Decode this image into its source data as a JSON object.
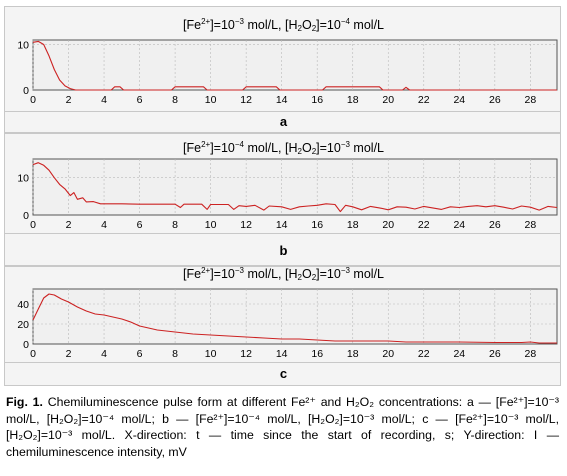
{
  "colors": {
    "line": "#cc2222",
    "plot_bg": "#f0f0f0",
    "frame": "#cccccc",
    "grid": "#b9b9b9"
  },
  "panels": [
    {
      "letter": "a",
      "title": {
        "fe_pre": "[Fe",
        "fe_sup": "2+",
        "fe_post": "]=10",
        "fe_exp": "−3",
        "fe_unit": " mol/L, ",
        "h_pre": "[H",
        "h_sub1": "2",
        "h_mid": "O",
        "h_sub2": "2",
        "h_post": "]=10",
        "h_exp": "−4",
        "h_unit": " mol/L"
      }
    },
    {
      "letter": "b",
      "title": {
        "fe_pre": "[Fe",
        "fe_sup": "2+",
        "fe_post": "]=10",
        "fe_exp": "−4",
        "fe_unit": " mol/L, ",
        "h_pre": "[H",
        "h_sub1": "2",
        "h_mid": "O",
        "h_sub2": "2",
        "h_post": "]=10",
        "h_exp": "−3",
        "h_unit": " mol/L"
      }
    },
    {
      "letter": "c",
      "title": {
        "fe_pre": "[Fe",
        "fe_sup": "2+",
        "fe_post": "]=10",
        "fe_exp": "−3",
        "fe_unit": " mol/L, ",
        "h_pre": "[H",
        "h_sub1": "2",
        "h_mid": "O",
        "h_sub2": "2",
        "h_post": "]=10",
        "h_exp": "−3",
        "h_unit": " mol/L"
      }
    }
  ],
  "caption": {
    "label": "Fig. 1.",
    "text": "Chemiluminescence pulse form at different Fe²⁺ and H₂O₂ concentrations: a — [Fe²⁺]=10⁻³ mol/L, [H₂O₂]=10⁻⁴ mol/L; b — [Fe²⁺]=10⁻⁴ mol/L, [H₂O₂]=10⁻³ mol/L; c — [Fe²⁺]=10⁻³ mol/L, [H₂O₂]=10⁻³ mol/L. X-direction: t — time since the start of recording, s; Y-direction: I — chemiluminescence intensity, mV"
  },
  "chart_data": [
    {
      "type": "line",
      "xlim": [
        0,
        29.5
      ],
      "ylim": [
        0,
        11
      ],
      "xticks": [
        0,
        2,
        4,
        6,
        8,
        10,
        12,
        14,
        16,
        18,
        20,
        22,
        24,
        26,
        28
      ],
      "yticks": [
        0,
        10
      ],
      "grid": true,
      "series": [
        {
          "points": [
            [
              0,
              10.5
            ],
            [
              0.3,
              10.7
            ],
            [
              0.6,
              10
            ],
            [
              0.9,
              7.5
            ],
            [
              1.2,
              4.5
            ],
            [
              1.5,
              2.2
            ],
            [
              1.8,
              0.9
            ],
            [
              2.1,
              0.3
            ],
            [
              2.4,
              0
            ],
            [
              4.4,
              0
            ],
            [
              4.6,
              0.7
            ],
            [
              4.9,
              0.7
            ],
            [
              5.1,
              0
            ],
            [
              7.8,
              0
            ],
            [
              8,
              0.7
            ],
            [
              9.6,
              0.7
            ],
            [
              9.8,
              0
            ],
            [
              11.8,
              0
            ],
            [
              12,
              0.7
            ],
            [
              13.7,
              0.7
            ],
            [
              13.9,
              0
            ],
            [
              16.3,
              0
            ],
            [
              16.5,
              0.7
            ],
            [
              19.5,
              0.7
            ],
            [
              19.7,
              0
            ],
            [
              20.8,
              0
            ],
            [
              21,
              0.6
            ],
            [
              21.2,
              0
            ],
            [
              29.5,
              0
            ]
          ]
        }
      ]
    },
    {
      "type": "line",
      "xlim": [
        0,
        29.5
      ],
      "ylim": [
        0,
        15
      ],
      "xticks": [
        0,
        2,
        4,
        6,
        8,
        10,
        12,
        14,
        16,
        18,
        20,
        22,
        24,
        26,
        28
      ],
      "yticks": [
        0,
        10
      ],
      "grid": true,
      "series": [
        {
          "points": [
            [
              0,
              13.5
            ],
            [
              0.3,
              14
            ],
            [
              0.6,
              13.3
            ],
            [
              0.9,
              12
            ],
            [
              1.2,
              10
            ],
            [
              1.5,
              8.2
            ],
            [
              1.8,
              7
            ],
            [
              2.1,
              5.2
            ],
            [
              2.3,
              6
            ],
            [
              2.5,
              4.2
            ],
            [
              2.8,
              4.6
            ],
            [
              3,
              3.5
            ],
            [
              3.4,
              3.6
            ],
            [
              3.8,
              3
            ],
            [
              5,
              3
            ],
            [
              6,
              2.9
            ],
            [
              7,
              2.9
            ],
            [
              8,
              2.9
            ],
            [
              8.3,
              2
            ],
            [
              8.5,
              2.9
            ],
            [
              9.5,
              2.9
            ],
            [
              9.8,
              1.5
            ],
            [
              10,
              2.8
            ],
            [
              11,
              2.8
            ],
            [
              11.3,
              1.5
            ],
            [
              11.6,
              2.5
            ],
            [
              12,
              2.3
            ],
            [
              12.5,
              2.6
            ],
            [
              13,
              1.3
            ],
            [
              13.3,
              2.4
            ],
            [
              14,
              2.2
            ],
            [
              14.5,
              1.5
            ],
            [
              15,
              2.2
            ],
            [
              15.5,
              2.4
            ],
            [
              16,
              2.6
            ],
            [
              16.5,
              3
            ],
            [
              17,
              2.8
            ],
            [
              17.3,
              0.9
            ],
            [
              17.6,
              2.6
            ],
            [
              18,
              2.2
            ],
            [
              18.5,
              1.4
            ],
            [
              19,
              2.3
            ],
            [
              19.5,
              1.9
            ],
            [
              20,
              1.4
            ],
            [
              20.5,
              2.2
            ],
            [
              21,
              2.1
            ],
            [
              21.5,
              1.6
            ],
            [
              22,
              2.3
            ],
            [
              22.5,
              1.9
            ],
            [
              23,
              1.5
            ],
            [
              23.5,
              2.2
            ],
            [
              24,
              2
            ],
            [
              24.5,
              2.3
            ],
            [
              25,
              2.5
            ],
            [
              25.5,
              2.2
            ],
            [
              26,
              2.5
            ],
            [
              26.5,
              2.1
            ],
            [
              27,
              1.6
            ],
            [
              27.5,
              2.4
            ],
            [
              28,
              2.1
            ],
            [
              28.5,
              1.3
            ],
            [
              29,
              2.3
            ],
            [
              29.5,
              2
            ]
          ]
        }
      ]
    },
    {
      "type": "line",
      "xlim": [
        0,
        29.5
      ],
      "ylim": [
        0,
        55
      ],
      "xticks": [
        0,
        2,
        4,
        6,
        8,
        10,
        12,
        14,
        16,
        18,
        20,
        22,
        24,
        26,
        28
      ],
      "yticks": [
        0,
        20,
        40
      ],
      "grid": true,
      "series": [
        {
          "points": [
            [
              0,
              24
            ],
            [
              0.3,
              35
            ],
            [
              0.6,
              46
            ],
            [
              0.9,
              50
            ],
            [
              1.2,
              49
            ],
            [
              1.6,
              45
            ],
            [
              2,
              42
            ],
            [
              2.5,
              37
            ],
            [
              3,
              33
            ],
            [
              3.5,
              30
            ],
            [
              4,
              29
            ],
            [
              4.5,
              27
            ],
            [
              5,
              25
            ],
            [
              5.5,
              22
            ],
            [
              6,
              18
            ],
            [
              6.5,
              16
            ],
            [
              7,
              14
            ],
            [
              7.5,
              13
            ],
            [
              8,
              12
            ],
            [
              8.5,
              11
            ],
            [
              9,
              10
            ],
            [
              10,
              9
            ],
            [
              11,
              8
            ],
            [
              12,
              7
            ],
            [
              13,
              6
            ],
            [
              14,
              5
            ],
            [
              15,
              5
            ],
            [
              16,
              4
            ],
            [
              17,
              3
            ],
            [
              18,
              3
            ],
            [
              19,
              3
            ],
            [
              20,
              3
            ],
            [
              21,
              2
            ],
            [
              22,
              2
            ],
            [
              24,
              2
            ],
            [
              26,
              1.5
            ],
            [
              27.5,
              1.5
            ],
            [
              28,
              2
            ],
            [
              28.5,
              1
            ],
            [
              29.5,
              1
            ]
          ]
        }
      ]
    }
  ]
}
